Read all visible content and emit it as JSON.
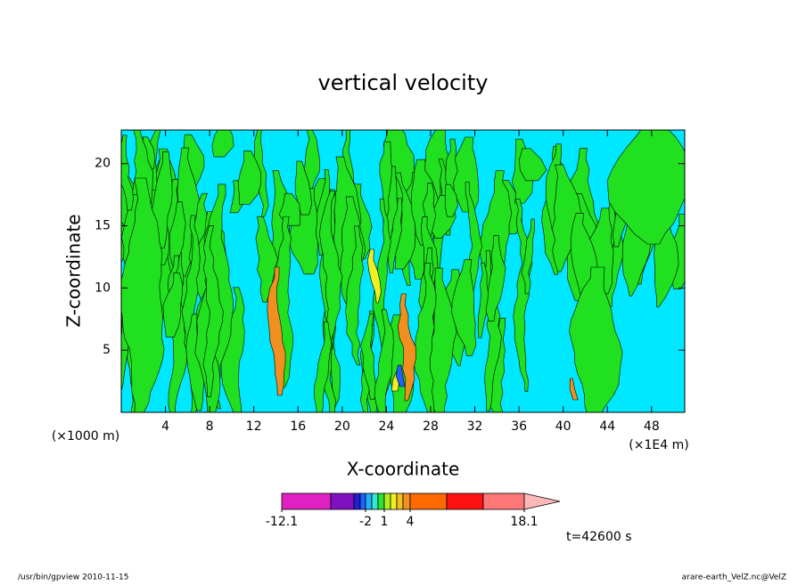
{
  "chart_data": {
    "type": "contour",
    "title": "vertical velocity",
    "x_label": "X-coordinate",
    "y_label": "Z-coordinate",
    "x_unit_left": "(×1000 m)",
    "x_unit_right": "(×1E4 m)",
    "xlim": [
      0,
      51
    ],
    "ylim": [
      0,
      22.7
    ],
    "xticks": [
      4,
      8,
      12,
      16,
      20,
      24,
      28,
      32,
      36,
      40,
      44,
      48
    ],
    "yticks": [
      5,
      10,
      15,
      20
    ],
    "colorbar": {
      "colors": [
        "#e020c0",
        "#8010c0",
        "#2020d0",
        "#2060ff",
        "#20b0ff",
        "#30e8d0",
        "#30e030",
        "#b0f020",
        "#f0f020",
        "#f0c020",
        "#f09020",
        "#ff6a00",
        "#ff1010",
        "#ff7878"
      ],
      "extend_color": "#ffb8b8",
      "levels": [
        -12.1,
        null,
        null,
        null,
        -2,
        null,
        null,
        1,
        null,
        null,
        null,
        4,
        null,
        null,
        18.1
      ]
    },
    "annotation": "t=42600 s",
    "footer_left": "/usr/bin/gpview   2010-11-15",
    "footer_right": "arare-earth_VelZ.nc@VelZ"
  }
}
